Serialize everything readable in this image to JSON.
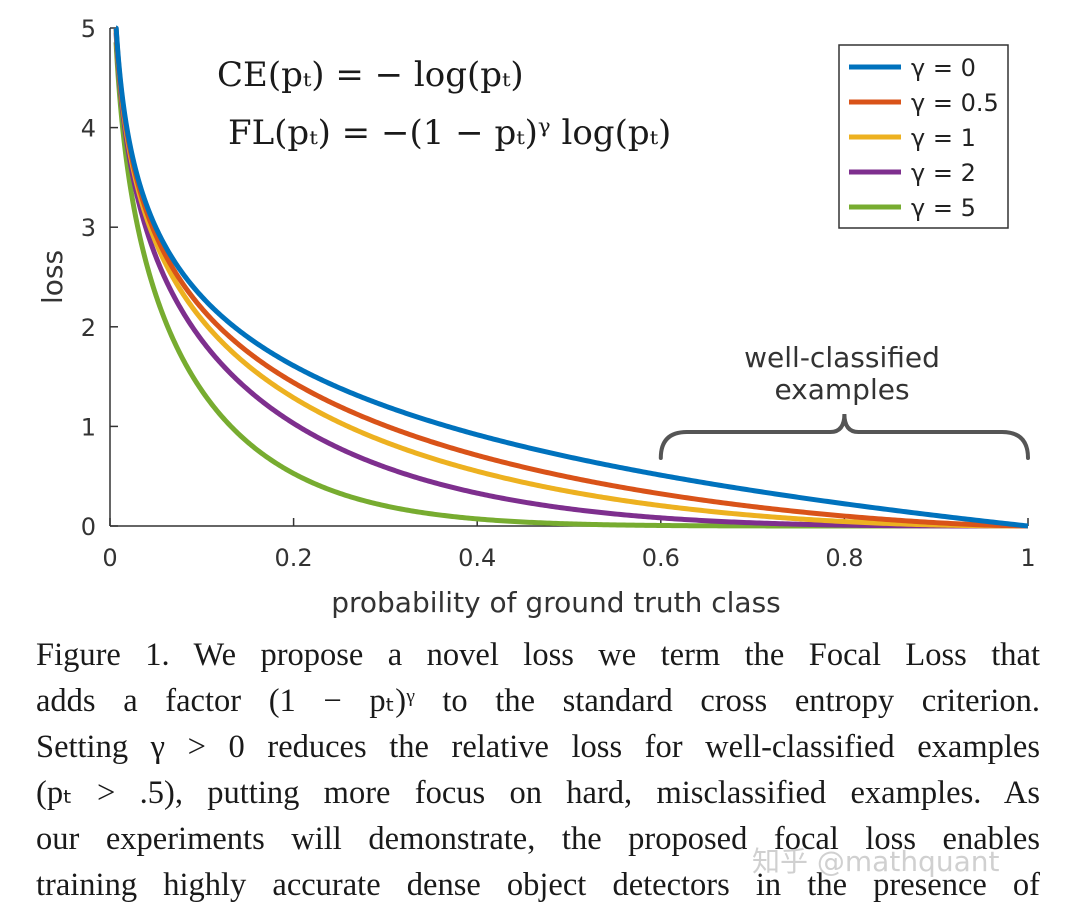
{
  "chart_data": {
    "type": "line",
    "xlabel": "probability of ground truth class",
    "ylabel": "loss",
    "xlim": [
      0,
      1
    ],
    "ylim": [
      0,
      5
    ],
    "x_ticks": [
      "0",
      "0.2",
      "0.4",
      "0.6",
      "0.8",
      "1"
    ],
    "y_ticks": [
      "0",
      "1",
      "2",
      "3",
      "4",
      "5"
    ],
    "grid": false,
    "legend_position": "top-right",
    "formula": "loss = -(1 - p)^gamma * log(p)",
    "series": [
      {
        "name": "γ = 0",
        "gamma": 0,
        "color": "#0072bd"
      },
      {
        "name": "γ = 0.5",
        "gamma": 0.5,
        "color": "#d95319"
      },
      {
        "name": "γ = 1",
        "gamma": 1,
        "color": "#edb120"
      },
      {
        "name": "γ = 2",
        "gamma": 2,
        "color": "#7e2f8e"
      },
      {
        "name": "γ = 5",
        "gamma": 5,
        "color": "#77ac30"
      }
    ],
    "equations": {
      "ce": "CE(pₜ) = − log(pₜ)",
      "fl": "FL(pₜ) = −(1 − pₜ)ᵞ log(pₜ)"
    },
    "annotation": {
      "line1": "well-classified",
      "line2": "examples",
      "x_range": [
        0.6,
        1.0
      ]
    }
  },
  "caption": {
    "lines": [
      "Figure 1. We propose a novel loss we term the Focal Loss that",
      "adds a factor (1 − pₜ)ᵞ to the standard cross entropy criterion.",
      "Setting γ > 0 reduces the relative loss for well-classified examples",
      "(pₜ > .5), putting more focus on hard, misclassified examples. As",
      "our experiments will demonstrate, the proposed focal loss enables",
      "training highly accurate dense object detectors in the presence of"
    ]
  },
  "watermark": "知乎 @mathquant"
}
